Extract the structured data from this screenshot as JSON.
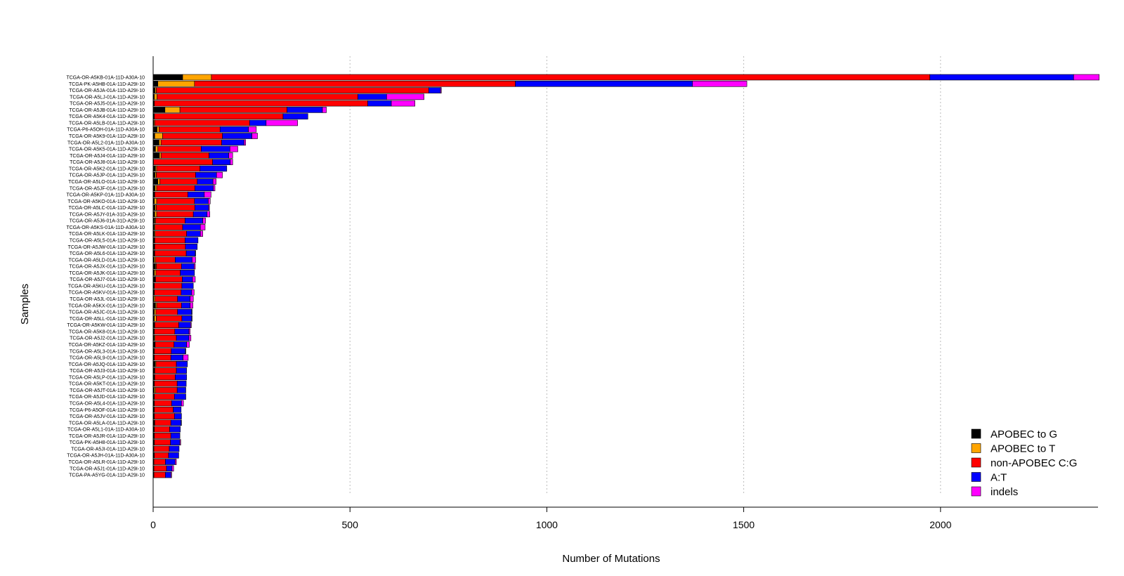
{
  "chart_data": {
    "type": "bar",
    "orientation": "horizontal",
    "stacked": true,
    "title": "",
    "xlabel": "Number of Mutations",
    "ylabel": "Samples",
    "xlim": [
      0,
      2400
    ],
    "xticks": [
      0,
      500,
      1000,
      1500,
      2000
    ],
    "grid": "vertical dotted",
    "legend_position": "bottom-right",
    "series": [
      {
        "name": "APOBEC to G",
        "color": "#000000"
      },
      {
        "name": "APOBEC to T",
        "color": "#FFA500"
      },
      {
        "name": "non-APOBEC C:G",
        "color": "#FF0000"
      },
      {
        "name": "A:T",
        "color": "#0000FF"
      },
      {
        "name": "indels",
        "color": "#FF00FF"
      }
    ],
    "rows": [
      {
        "sample": "TCGA-OR-A5KB-01A-11D-A30A-10",
        "values": [
          75,
          73,
          1825,
          365,
          65
        ]
      },
      {
        "sample": "TCGA-PK-A5HB-01A-11D-A29I-10",
        "values": [
          12,
          93,
          815,
          450,
          138
        ]
      },
      {
        "sample": "TCGA-OR-A5JA-01A-11D-A29I-10",
        "values": [
          5,
          3,
          692,
          30,
          2
        ]
      },
      {
        "sample": "TCGA-OR-A5LJ-01A-11D-A29I-10",
        "values": [
          3,
          7,
          510,
          73,
          95
        ]
      },
      {
        "sample": "TCGA-OR-A5J5-01A-11D-A29I-10",
        "values": [
          2,
          1,
          542,
          60,
          60
        ]
      },
      {
        "sample": "TCGA-OR-A5JB-01A-11D-A29I-10",
        "values": [
          30,
          38,
          272,
          90,
          10
        ]
      },
      {
        "sample": "TCGA-OR-A5K4-01A-11D-A29I-10",
        "values": [
          2,
          1,
          327,
          63,
          0
        ]
      },
      {
        "sample": "TCGA-OR-A5LB-01A-11D-A29I-10",
        "values": [
          2,
          2,
          241,
          42,
          80
        ]
      },
      {
        "sample": "TCGA-P6-A5OH-01A-11D-A30A-10",
        "values": [
          10,
          5,
          155,
          72,
          20
        ]
      },
      {
        "sample": "TCGA-OR-A5K9-01A-11D-A29I-10",
        "values": [
          4,
          20,
          152,
          75,
          14
        ]
      },
      {
        "sample": "TCGA-OR-A5L2-01A-11D-A30A-10",
        "values": [
          15,
          5,
          154,
          57,
          4
        ]
      },
      {
        "sample": "TCGA-OR-A5K5-01A-11D-A29I-10",
        "values": [
          6,
          6,
          110,
          73,
          20
        ]
      },
      {
        "sample": "TCGA-OR-A5J4-01A-11D-A29I-10",
        "values": [
          16,
          4,
          122,
          50,
          10
        ]
      },
      {
        "sample": "TCGA-OR-A5J8-01A-11D-A29I-10",
        "values": [
          0,
          1,
          150,
          45,
          6
        ]
      },
      {
        "sample": "TCGA-OR-A5K2-01A-11D-A29I-10",
        "values": [
          6,
          3,
          110,
          68,
          0
        ]
      },
      {
        "sample": "TCGA-OR-A5JP-01A-11D-A29I-10",
        "values": [
          5,
          3,
          100,
          53,
          15
        ]
      },
      {
        "sample": "TCGA-OR-A5LO-01A-11D-A29I-10",
        "values": [
          12,
          5,
          95,
          40,
          8
        ]
      },
      {
        "sample": "TCGA-OR-A5JF-01A-11D-A29I-10",
        "values": [
          5,
          4,
          97,
          47,
          4
        ]
      },
      {
        "sample": "TCGA-OR-A5KP-01A-11D-A30A-10",
        "values": [
          3,
          1,
          84,
          42,
          17
        ]
      },
      {
        "sample": "TCGA-OR-A5KO-01A-11D-A29I-10",
        "values": [
          3,
          6,
          96,
          35,
          5
        ]
      },
      {
        "sample": "TCGA-OR-A5LC-01A-11D-A29I-10",
        "values": [
          5,
          3,
          98,
          35,
          2
        ]
      },
      {
        "sample": "TCGA-OR-A5JY-01A-31D-A29I-10",
        "values": [
          4,
          5,
          93,
          35,
          7
        ]
      },
      {
        "sample": "TCGA-OR-A5J6-01A-31D-A29I-10",
        "values": [
          4,
          2,
          75,
          45,
          7
        ]
      },
      {
        "sample": "TCGA-OR-A5KS-01A-11D-A30A-10",
        "values": [
          3,
          2,
          70,
          45,
          12
        ]
      },
      {
        "sample": "TCGA-OR-A5LK-01A-11D-A29I-10",
        "values": [
          3,
          2,
          80,
          35,
          6
        ]
      },
      {
        "sample": "TCGA-OR-A5L5-01A-11D-A29I-10",
        "values": [
          3,
          1,
          77,
          33,
          0
        ]
      },
      {
        "sample": "TCGA-OR-A5JW-01A-11D-A29I-10",
        "values": [
          3,
          1,
          78,
          30,
          0
        ]
      },
      {
        "sample": "TCGA-OR-A5L6-01A-11D-A29I-10",
        "values": [
          3,
          1,
          80,
          23,
          1
        ]
      },
      {
        "sample": "TCGA-OR-A5LD-01A-11D-A29I-10",
        "values": [
          3,
          3,
          50,
          43,
          9
        ]
      },
      {
        "sample": "TCGA-OR-A5JX-01A-11D-A29I-10",
        "values": [
          6,
          2,
          64,
          32,
          3
        ]
      },
      {
        "sample": "TCGA-OR-A5JK-01A-11D-A29I-10",
        "values": [
          3,
          4,
          62,
          36,
          0
        ]
      },
      {
        "sample": "TCGA-OR-A5J7-01A-11D-A29I-10",
        "values": [
          5,
          1,
          68,
          26,
          7
        ]
      },
      {
        "sample": "TCGA-OR-A5KU-01A-11D-A29I-10",
        "values": [
          2,
          1,
          70,
          29,
          0
        ]
      },
      {
        "sample": "TCGA-OR-A5KV-01A-11D-A29I-10",
        "values": [
          2,
          1,
          68,
          27,
          6
        ]
      },
      {
        "sample": "TCGA-OR-A5JL-01A-11D-A29I-10",
        "values": [
          2,
          3,
          57,
          32,
          8
        ]
      },
      {
        "sample": "TCGA-OR-A5KX-01A-11D-A29I-10",
        "values": [
          6,
          3,
          63,
          22,
          7
        ]
      },
      {
        "sample": "TCGA-OR-A5JC-01A-11D-A29I-10",
        "values": [
          3,
          4,
          55,
          36,
          1
        ]
      },
      {
        "sample": "TCGA-OR-A5LL-01A-11D-A29I-10",
        "values": [
          3,
          5,
          65,
          25,
          1
        ]
      },
      {
        "sample": "TCGA-OR-A5KW-01A-11D-A29I-10",
        "values": [
          3,
          1,
          61,
          30,
          2
        ]
      },
      {
        "sample": "TCGA-OR-A5K8-01A-11D-A29I-10",
        "values": [
          2,
          1,
          52,
          36,
          3
        ]
      },
      {
        "sample": "TCGA-OR-A5J2-01A-11D-A29I-10",
        "values": [
          3,
          2,
          54,
          32,
          5
        ]
      },
      {
        "sample": "TCGA-OR-A5KZ-01A-11D-A29I-10",
        "values": [
          4,
          1,
          48,
          32,
          7
        ]
      },
      {
        "sample": "TCGA-OR-A5L3-01A-11D-A29I-10",
        "values": [
          2,
          1,
          43,
          36,
          1
        ]
      },
      {
        "sample": "TCGA-OR-A5L9-01A-11D-A29I-10",
        "values": [
          2,
          1,
          42,
          31,
          13
        ]
      },
      {
        "sample": "TCGA-OR-A5JQ-01A-11D-A29I-10",
        "values": [
          5,
          2,
          52,
          28,
          0
        ]
      },
      {
        "sample": "TCGA-OR-A5J3-01A-11D-A29I-10",
        "values": [
          3,
          1,
          55,
          26,
          0
        ]
      },
      {
        "sample": "TCGA-OR-A5LP-01A-11D-A29I-10",
        "values": [
          3,
          1,
          52,
          29,
          0
        ]
      },
      {
        "sample": "TCGA-OR-A5KT-01A-11D-A29I-10",
        "values": [
          2,
          1,
          58,
          23,
          0
        ]
      },
      {
        "sample": "TCGA-OR-A5JT-01A-11D-A29I-10",
        "values": [
          3,
          3,
          55,
          22,
          0
        ]
      },
      {
        "sample": "TCGA-OR-A5JD-01A-11D-A29I-10",
        "values": [
          2,
          1,
          51,
          29,
          0
        ]
      },
      {
        "sample": "TCGA-OR-A5L4-01A-11D-A29I-10",
        "values": [
          2,
          1,
          44,
          25,
          5
        ]
      },
      {
        "sample": "TCGA-P6-A5OF-01A-11D-A29I-10",
        "values": [
          2,
          1,
          48,
          20,
          0
        ]
      },
      {
        "sample": "TCGA-OR-A5JV-01A-11D-A29I-10",
        "values": [
          2,
          1,
          51,
          18,
          0
        ]
      },
      {
        "sample": "TCGA-OR-A5LA-01A-11D-A29I-10",
        "values": [
          3,
          1,
          41,
          26,
          1
        ]
      },
      {
        "sample": "TCGA-OR-A5L1-01A-11D-A30A-10",
        "values": [
          2,
          1,
          39,
          27,
          0
        ]
      },
      {
        "sample": "TCGA-OR-A5JR-01A-11D-A29I-10",
        "values": [
          2,
          1,
          42,
          23,
          0
        ]
      },
      {
        "sample": "TCGA-PK-A5H8-01A-11D-A29I-10",
        "values": [
          2,
          1,
          41,
          24,
          2
        ]
      },
      {
        "sample": "TCGA-OR-A5JI-01A-11D-A29I-10",
        "values": [
          1,
          1,
          39,
          25,
          0
        ]
      },
      {
        "sample": "TCGA-OR-A5JH-01A-11D-A30A-10",
        "values": [
          2,
          1,
          36,
          26,
          0
        ]
      },
      {
        "sample": "TCGA-OR-A5LR-01A-11D-A29I-10",
        "values": [
          1,
          1,
          29,
          25,
          3
        ]
      },
      {
        "sample": "TCGA-OR-A5J1-01A-11D-A29I-10",
        "values": [
          1,
          1,
          32,
          14,
          4
        ]
      },
      {
        "sample": "TCGA-PA-A5YG-01A-11D-A29I-10",
        "values": [
          1,
          1,
          29,
          14,
          2
        ]
      }
    ]
  }
}
